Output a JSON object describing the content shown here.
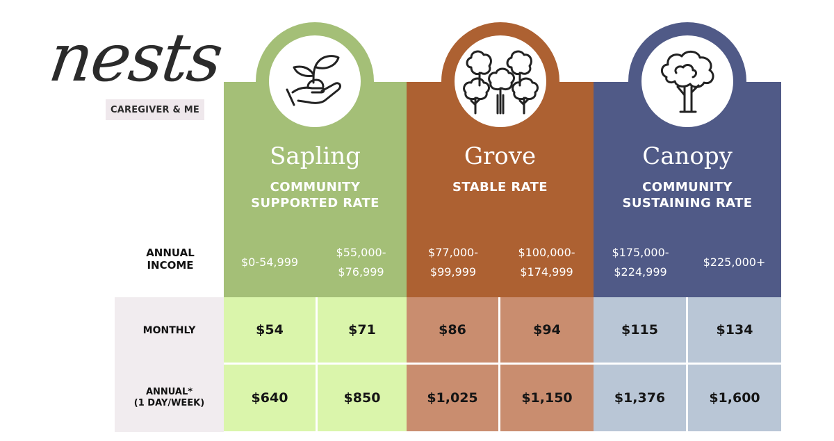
{
  "brand": {
    "logo": "nests",
    "badge": "CAREGIVER & ME"
  },
  "colors": {
    "sapling": "#a4bf77",
    "sapling_light": "#daf5ab",
    "grove": "#ad6132",
    "grove_light": "#c98d6f",
    "canopy": "#505a87",
    "canopy_light": "#b9c6d6",
    "label_bg": "#f1ecef"
  },
  "rows": {
    "annual_income": "ANNUAL\nINCOME",
    "monthly": "MONTHLY",
    "annual": "ANNUAL*\n(1 DAY/WEEK)"
  },
  "tiers": [
    {
      "name": "Sapling",
      "rate": "COMMUNITY\nSUPPORTED RATE",
      "icon": "hand-plant-icon",
      "columns": [
        {
          "income": "$0-54,999",
          "monthly": "$54",
          "annual": "$640"
        },
        {
          "income": "$55,000-\n$76,999",
          "monthly": "$71",
          "annual": "$850"
        }
      ]
    },
    {
      "name": "Grove",
      "rate": "STABLE RATE",
      "icon": "tree-grove-icon",
      "columns": [
        {
          "income": "$77,000-\n$99,999",
          "monthly": "$86",
          "annual": "$1,025"
        },
        {
          "income": "$100,000-\n$174,999",
          "monthly": "$94",
          "annual": "$1,150"
        }
      ]
    },
    {
      "name": "Canopy",
      "rate": "COMMUNITY\nSUSTAINING RATE",
      "icon": "big-tree-icon",
      "columns": [
        {
          "income": "$175,000-\n$224,999",
          "monthly": "$115",
          "annual": "$1,376"
        },
        {
          "income": "$225,000+",
          "monthly": "$134",
          "annual": "$1,600"
        }
      ]
    }
  ]
}
